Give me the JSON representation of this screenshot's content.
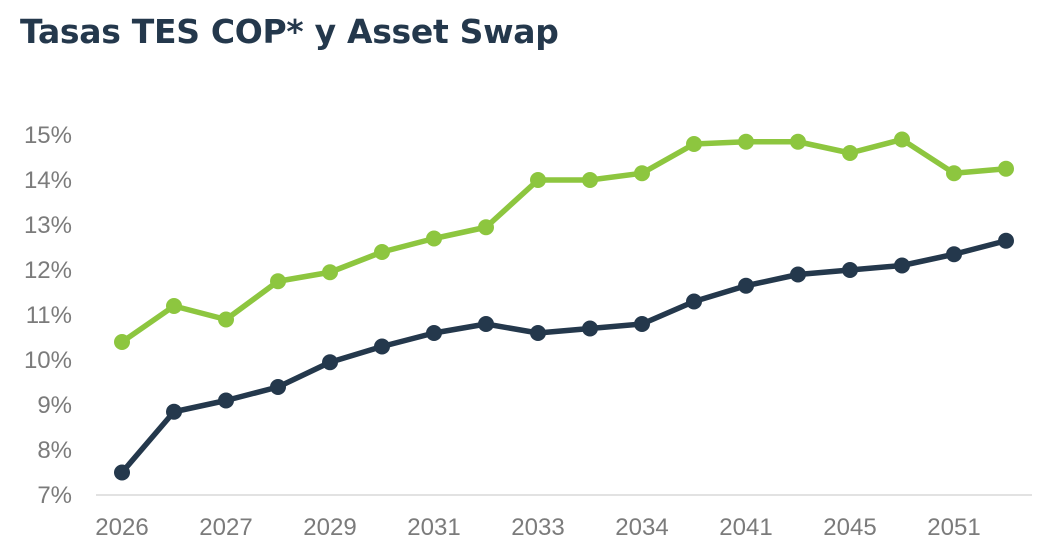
{
  "title": "Tasas TES COP* y Asset Swap",
  "chart_data": {
    "type": "line",
    "title": "Tasas TES COP* y Asset Swap",
    "xlabel": "",
    "ylabel": "",
    "ylim": [
      7,
      15
    ],
    "yticks": [
      "7%",
      "8%",
      "9%",
      "10%",
      "11%",
      "12%",
      "13%",
      "14%",
      "15%"
    ],
    "x_tick_labels": [
      "2026",
      "2027",
      "2029",
      "2031",
      "2033",
      "2034",
      "2041",
      "2045",
      "2051"
    ],
    "grid": false,
    "legend": "none",
    "series": [
      {
        "color": "#8dc63f",
        "values": [
          10.4,
          11.2,
          10.9,
          11.75,
          11.95,
          12.4,
          12.7,
          12.95,
          14.0,
          14.0,
          14.15,
          14.8,
          14.85,
          14.85,
          14.6,
          14.9,
          14.15,
          14.25
        ]
      },
      {
        "color": "#24384c",
        "values": [
          7.5,
          8.85,
          9.1,
          9.4,
          9.95,
          10.3,
          10.6,
          10.8,
          10.6,
          10.7,
          10.8,
          11.3,
          11.65,
          11.9,
          12.0,
          12.1,
          12.35,
          12.65
        ]
      }
    ]
  }
}
